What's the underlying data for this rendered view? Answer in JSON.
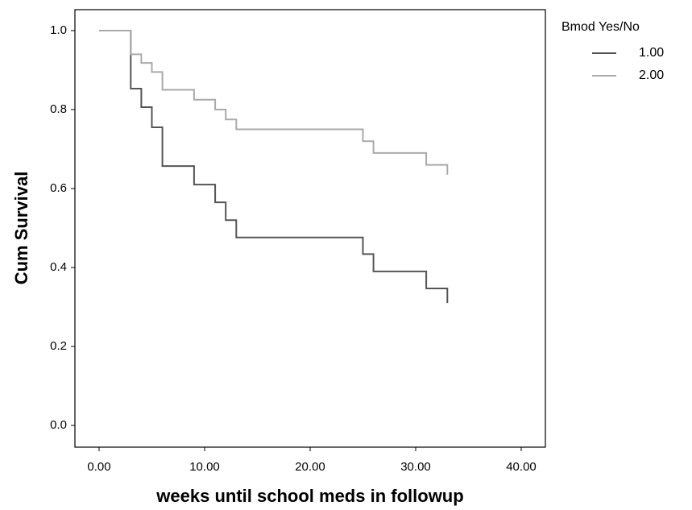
{
  "chart_data": {
    "type": "step",
    "x_label": "weeks until school meds in followup",
    "y_label": "Cum Survival",
    "legend_title": "Bmod Yes/No",
    "legend_position": "outside-right",
    "grid": false,
    "xlim": [
      -2.29,
      42.29
    ],
    "ylim": [
      -0.055,
      1.053
    ],
    "xticks": [
      {
        "value": 0,
        "label": "0.00"
      },
      {
        "value": 10,
        "label": "10.00"
      },
      {
        "value": 20,
        "label": "20.00"
      },
      {
        "value": 30,
        "label": "30.00"
      },
      {
        "value": 40,
        "label": "40.00"
      }
    ],
    "yticks": [
      {
        "value": 0,
        "label": "0.0"
      },
      0.2,
      0.4,
      0.6,
      0.8,
      {
        "value": 1,
        "label": "1.0"
      }
    ],
    "series": [
      {
        "name": "1.00",
        "color": "#555555",
        "x": [
          0,
          3,
          4,
          5,
          6,
          9,
          11,
          12,
          13,
          25,
          26,
          31,
          33
        ],
        "values": [
          1,
          0.853,
          0.806,
          0.755,
          0.657,
          0.61,
          0.565,
          0.52,
          0.476,
          0.434,
          0.39,
          0.347,
          0.31
        ]
      },
      {
        "name": "2.00",
        "color": "#aaaaaa",
        "x": [
          0,
          3,
          4,
          5,
          6,
          9,
          11,
          12,
          13,
          25,
          26,
          31,
          33
        ],
        "values": [
          1,
          0.94,
          0.918,
          0.895,
          0.85,
          0.825,
          0.8,
          0.775,
          0.75,
          0.72,
          0.69,
          0.66,
          0.635
        ]
      }
    ]
  }
}
